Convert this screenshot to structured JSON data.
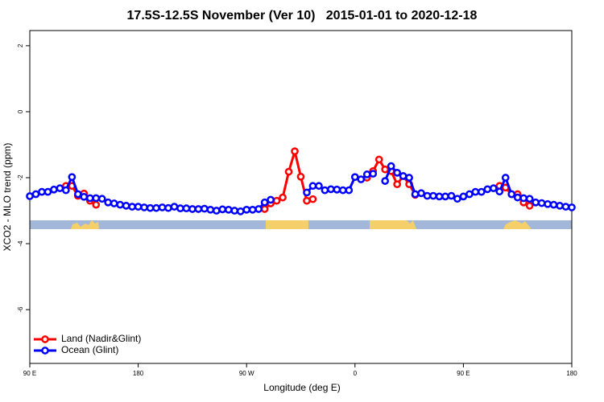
{
  "chart_data": {
    "type": "line",
    "title": "17.5S-12.5S November (Ver 10)   2015-01-01 to 2020-12-18",
    "x_label": "Longitude (deg E)",
    "y_label": "XCO2 - MLO trend (ppm)",
    "x": [
      90,
      95,
      100,
      105,
      110,
      115,
      120,
      125,
      130,
      135,
      140,
      145,
      150,
      155,
      160,
      165,
      170,
      175,
      180,
      185,
      190,
      195,
      200,
      205,
      210,
      215,
      220,
      225,
      230,
      235,
      240,
      245,
      250,
      255,
      260,
      265,
      270,
      275,
      280,
      285,
      290,
      295,
      300,
      305,
      310,
      315,
      320,
      325,
      330,
      335,
      340,
      345,
      350,
      355,
      360,
      365,
      370,
      375,
      380,
      385,
      390,
      395,
      400,
      405,
      410,
      415,
      420,
      425,
      430,
      435,
      440,
      445,
      450,
      455,
      460,
      465,
      470,
      475,
      480,
      485,
      490,
      495,
      500,
      505,
      510,
      515,
      520,
      525,
      530,
      535,
      540
    ],
    "series": [
      {
        "name": "Land (Nadir&Glint)",
        "color": "#ff0000",
        "values": [
          null,
          null,
          null,
          null,
          null,
          null,
          -2.25,
          -2.25,
          -2.55,
          -2.48,
          -2.7,
          -2.82,
          null,
          null,
          null,
          null,
          null,
          null,
          null,
          null,
          null,
          null,
          null,
          null,
          null,
          null,
          null,
          null,
          null,
          null,
          null,
          null,
          null,
          null,
          null,
          null,
          null,
          null,
          null,
          -2.95,
          -2.78,
          -2.7,
          -2.6,
          -1.82,
          -1.2,
          -1.97,
          -2.7,
          -2.65,
          null,
          null,
          null,
          null,
          null,
          null,
          null,
          null,
          -2.0,
          -1.8,
          -1.45,
          -1.75,
          -1.8,
          -2.2,
          -1.95,
          -2.2,
          -2.52,
          null,
          null,
          null,
          null,
          null,
          null,
          null,
          null,
          null,
          null,
          null,
          null,
          null,
          -2.25,
          -2.3,
          -2.5,
          -2.5,
          -2.75,
          -2.85,
          null,
          null,
          null,
          null,
          null,
          null,
          null
        ]
      },
      {
        "name": "Ocean (Glint)",
        "color": "#0000ff",
        "values": [
          -2.56,
          -2.5,
          -2.43,
          -2.43,
          -2.36,
          -2.32,
          -2.38,
          -1.98,
          -2.5,
          -2.58,
          -2.62,
          -2.62,
          -2.64,
          -2.75,
          -2.78,
          -2.82,
          -2.85,
          -2.88,
          -2.88,
          -2.9,
          -2.92,
          -2.92,
          -2.9,
          -2.92,
          -2.88,
          -2.93,
          -2.93,
          -2.95,
          -2.95,
          -2.94,
          -2.97,
          -3.0,
          -2.96,
          -2.97,
          -3.0,
          -3.02,
          -2.97,
          -2.97,
          -2.95,
          -2.75,
          -2.67,
          null,
          null,
          null,
          null,
          null,
          -2.45,
          -2.25,
          -2.25,
          -2.38,
          -2.35,
          -2.36,
          -2.38,
          -2.38,
          -1.98,
          -2.05,
          -1.9,
          -1.88,
          null,
          -2.1,
          -1.65,
          -1.85,
          -1.95,
          -2.0,
          -2.5,
          -2.47,
          -2.55,
          -2.55,
          -2.57,
          -2.57,
          -2.55,
          -2.64,
          -2.57,
          -2.5,
          -2.43,
          -2.43,
          -2.35,
          -2.32,
          -2.42,
          -2.0,
          -2.5,
          -2.6,
          -2.62,
          -2.64,
          -2.75,
          -2.77,
          -2.8,
          -2.82,
          -2.85,
          -2.88,
          -2.9
        ]
      }
    ],
    "xlim": [
      90,
      540
    ],
    "xticks": [
      {
        "value": 90,
        "label": "90 E"
      },
      {
        "value": 180,
        "label": "180"
      },
      {
        "value": 270,
        "label": "90 W"
      },
      {
        "value": 360,
        "label": "0"
      },
      {
        "value": 450,
        "label": "90 E"
      },
      {
        "value": 540,
        "label": "180"
      }
    ],
    "ylim": [
      -7.63,
      2.46
    ],
    "yticks": [
      -6,
      -4,
      -2,
      0,
      2
    ],
    "legend": "bottom-left"
  }
}
